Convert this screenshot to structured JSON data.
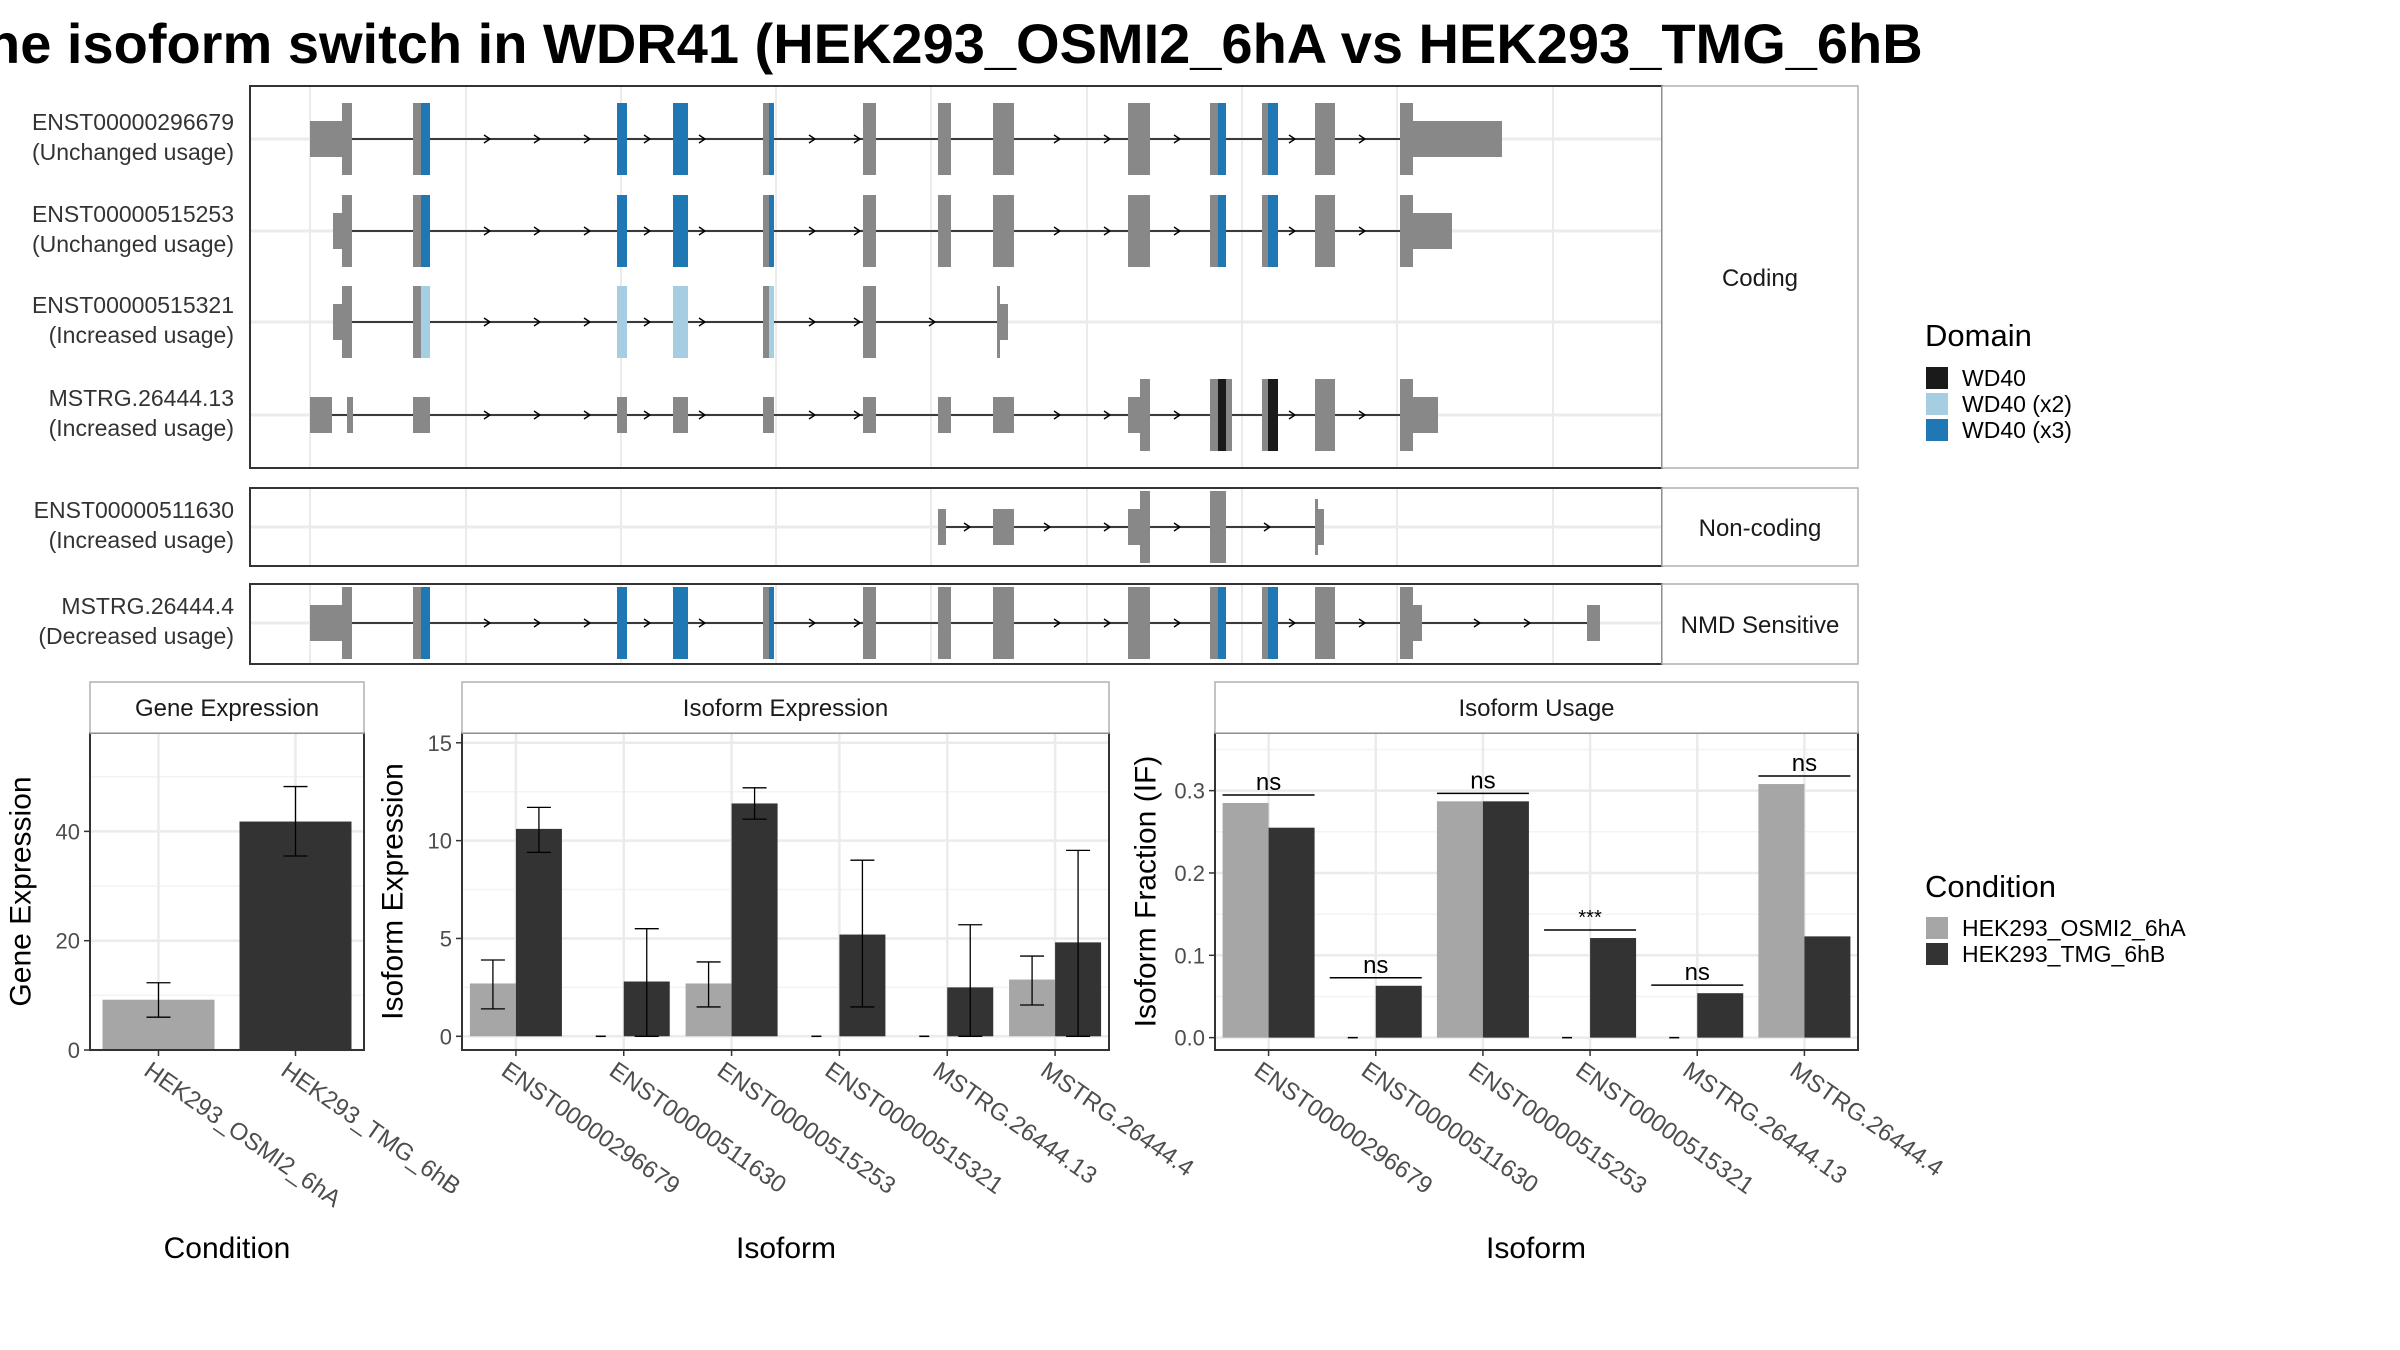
{
  "title": "he isoform switch in WDR41 (HEK293_OSMI2_6hA vs HEK293_TMG_6hB",
  "legends": {
    "domain": {
      "title": "Domain",
      "entries": [
        {
          "label": "WD40",
          "color": "#1a1a1a"
        },
        {
          "label": "WD40 (x2)",
          "color": "#a6cee3"
        },
        {
          "label": "WD40 (x3)",
          "color": "#1f78b4"
        }
      ]
    },
    "condition": {
      "title": "Condition",
      "entries": [
        {
          "label": "HEK293_OSMI2_6hA",
          "color": "#a6a6a6"
        },
        {
          "label": "HEK293_TMG_6hB",
          "color": "#333333"
        }
      ]
    }
  },
  "transcript_panels": [
    {
      "strip": "Coding",
      "transcripts": [
        {
          "id": "ENST00000296679",
          "usage": "(Unchanged usage)"
        },
        {
          "id": "ENST00000515253",
          "usage": "(Unchanged usage)"
        },
        {
          "id": "ENST00000515321",
          "usage": "(Increased usage)"
        },
        {
          "id": "MSTRG.26444.13",
          "usage": "(Increased usage)"
        }
      ]
    },
    {
      "strip": "Non-coding",
      "transcripts": [
        {
          "id": "ENST00000511630",
          "usage": "(Increased usage)"
        }
      ]
    },
    {
      "strip": "NMD Sensitive",
      "transcripts": [
        {
          "id": "MSTRG.26444.4",
          "usage": "(Decreased usage)"
        }
      ]
    }
  ],
  "chart_data": [
    {
      "type": "bar",
      "panel": "Gene Expression",
      "xlabel": "Condition",
      "ylabel": "Gene Expression",
      "categories": [
        "HEK293_OSMI2_6hA",
        "HEK293_TMG_6hB"
      ],
      "values": [
        9.2,
        41.8
      ],
      "error_bars": [
        [
          6.0,
          12.3
        ],
        [
          35.5,
          48.2
        ]
      ],
      "ylim": [
        0,
        58
      ],
      "yticks": [
        0,
        20,
        40
      ]
    },
    {
      "type": "bar",
      "panel": "Isoform Expression",
      "xlabel": "Isoform",
      "ylabel": "Isoform Expression",
      "categories": [
        "ENST00000296679",
        "ENST00000511630",
        "ENST00000515253",
        "ENST00000515321",
        "MSTRG.26444.13",
        "MSTRG.26444.4"
      ],
      "series": [
        {
          "name": "HEK293_OSMI2_6hA",
          "values": [
            2.7,
            0.0,
            2.7,
            0.0,
            0.0,
            2.9
          ],
          "error_bars": [
            [
              1.4,
              3.9
            ],
            null,
            [
              1.5,
              3.8
            ],
            null,
            null,
            [
              1.6,
              4.1
            ]
          ]
        },
        {
          "name": "HEK293_TMG_6hB",
          "values": [
            10.6,
            2.8,
            11.9,
            5.2,
            2.5,
            4.8
          ],
          "error_bars": [
            [
              9.4,
              11.7
            ],
            [
              0.0,
              5.5
            ],
            [
              11.1,
              12.7
            ],
            [
              1.5,
              9.0
            ],
            [
              0.0,
              5.7
            ],
            [
              0.0,
              9.5
            ]
          ]
        }
      ],
      "ylim": [
        -0.7,
        15.5
      ],
      "yticks": [
        0,
        5,
        10,
        15
      ]
    },
    {
      "type": "bar",
      "panel": "Isoform Usage",
      "xlabel": "Isoform",
      "ylabel": "Isoform Fraction (IF)",
      "categories": [
        "ENST00000296679",
        "ENST00000511630",
        "ENST00000515253",
        "ENST00000515321",
        "MSTRG.26444.13",
        "MSTRG.26444.4"
      ],
      "series": [
        {
          "name": "HEK293_OSMI2_6hA",
          "values": [
            0.285,
            0.0,
            0.287,
            0.0,
            0.0,
            0.308
          ]
        },
        {
          "name": "HEK293_TMG_6hB",
          "values": [
            0.255,
            0.063,
            0.287,
            0.121,
            0.054,
            0.123
          ]
        }
      ],
      "annotations": [
        "ns",
        "ns",
        "ns",
        "***",
        "ns",
        "ns"
      ],
      "ylim": [
        -0.015,
        0.37
      ],
      "yticks": [
        "0.0",
        "0.1",
        "0.2",
        "0.3"
      ]
    }
  ]
}
